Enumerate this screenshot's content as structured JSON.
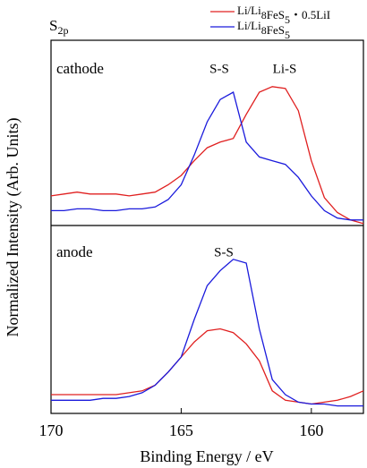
{
  "chart_data": [
    {
      "type": "line",
      "title": "S2p",
      "label": "cathode",
      "annotations": [
        "S-S",
        "Li-S"
      ],
      "ylabel": "Normalized Intensity (Arb. Units)",
      "xlim": [
        170,
        158
      ],
      "ylim": [
        0,
        1
      ],
      "x": [
        170,
        169.5,
        169,
        168.5,
        168,
        167.5,
        167,
        166.5,
        166,
        165.5,
        165,
        164.5,
        164,
        163.5,
        163,
        162.5,
        162,
        161.5,
        161,
        160.5,
        160,
        159.5,
        159,
        158.5,
        158
      ],
      "series": [
        {
          "name": "Li/Li8FeS5・0.5LiI",
          "color": "#e02020",
          "values": [
            0.16,
            0.17,
            0.18,
            0.17,
            0.17,
            0.17,
            0.16,
            0.17,
            0.18,
            0.22,
            0.27,
            0.35,
            0.42,
            0.45,
            0.47,
            0.6,
            0.72,
            0.75,
            0.74,
            0.62,
            0.35,
            0.15,
            0.07,
            0.03,
            0.01
          ]
        },
        {
          "name": "Li/Li8FeS5",
          "color": "#1a1adc",
          "values": [
            0.08,
            0.08,
            0.09,
            0.09,
            0.08,
            0.08,
            0.09,
            0.09,
            0.1,
            0.14,
            0.22,
            0.38,
            0.56,
            0.68,
            0.72,
            0.45,
            0.37,
            0.35,
            0.33,
            0.26,
            0.16,
            0.08,
            0.04,
            0.03,
            0.03
          ]
        }
      ]
    },
    {
      "type": "line",
      "label": "anode",
      "annotations": [
        "S-S"
      ],
      "xlabel": "Binding Energy / eV",
      "xlim": [
        170,
        158
      ],
      "xticks": [
        170,
        165,
        160
      ],
      "ylim": [
        0,
        1
      ],
      "x": [
        170,
        169.5,
        169,
        168.5,
        168,
        167.5,
        167,
        166.5,
        166,
        165.5,
        165,
        164.5,
        164,
        163.5,
        163,
        162.5,
        162,
        161.5,
        161,
        160.5,
        160,
        159.5,
        159,
        158.5,
        158
      ],
      "series": [
        {
          "color": "#e02020",
          "values": [
            0.1,
            0.1,
            0.1,
            0.1,
            0.1,
            0.1,
            0.11,
            0.12,
            0.15,
            0.22,
            0.3,
            0.38,
            0.44,
            0.45,
            0.43,
            0.37,
            0.28,
            0.12,
            0.07,
            0.06,
            0.05,
            0.06,
            0.07,
            0.09,
            0.12
          ]
        },
        {
          "color": "#1a1adc",
          "values": [
            0.07,
            0.07,
            0.07,
            0.07,
            0.08,
            0.08,
            0.09,
            0.11,
            0.15,
            0.22,
            0.3,
            0.5,
            0.68,
            0.76,
            0.82,
            0.8,
            0.45,
            0.18,
            0.1,
            0.06,
            0.05,
            0.05,
            0.04,
            0.04,
            0.04
          ]
        }
      ]
    }
  ]
}
